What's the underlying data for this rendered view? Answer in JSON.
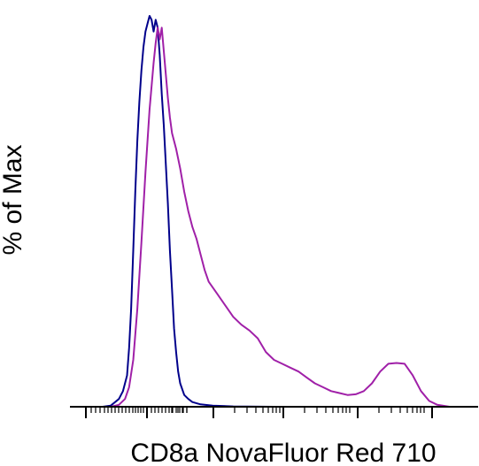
{
  "chart_data": {
    "type": "line",
    "title": "",
    "xlabel": "CD8a NovaFluor Red 710",
    "ylabel": "% of Max",
    "xscale": "biexponential",
    "xticks": "unlabeled",
    "ylim": [
      0,
      100
    ],
    "grid": false,
    "legend": "none",
    "series": [
      {
        "color": "#00008b",
        "points": [
          [
            0.0,
            0
          ],
          [
            0.08,
            0
          ],
          [
            0.1,
            0.3
          ],
          [
            0.12,
            2
          ],
          [
            0.13,
            4
          ],
          [
            0.14,
            8
          ],
          [
            0.145,
            15
          ],
          [
            0.15,
            25
          ],
          [
            0.155,
            40
          ],
          [
            0.16,
            55
          ],
          [
            0.165,
            68
          ],
          [
            0.17,
            78
          ],
          [
            0.175,
            86
          ],
          [
            0.18,
            92
          ],
          [
            0.185,
            96
          ],
          [
            0.19,
            98
          ],
          [
            0.195,
            100
          ],
          [
            0.2,
            99
          ],
          [
            0.205,
            96
          ],
          [
            0.21,
            99
          ],
          [
            0.215,
            97
          ],
          [
            0.22,
            90
          ],
          [
            0.225,
            80
          ],
          [
            0.23,
            72
          ],
          [
            0.235,
            62
          ],
          [
            0.24,
            52
          ],
          [
            0.245,
            40
          ],
          [
            0.25,
            30
          ],
          [
            0.255,
            20
          ],
          [
            0.26,
            14
          ],
          [
            0.265,
            9
          ],
          [
            0.27,
            6
          ],
          [
            0.28,
            3
          ],
          [
            0.29,
            2
          ],
          [
            0.3,
            1.2
          ],
          [
            0.32,
            0.6
          ],
          [
            0.35,
            0.3
          ],
          [
            0.4,
            0.1
          ],
          [
            0.5,
            0
          ],
          [
            1.0,
            0
          ]
        ]
      },
      {
        "color": "#a020a8",
        "points": [
          [
            0.0,
            0
          ],
          [
            0.1,
            0
          ],
          [
            0.12,
            0.5
          ],
          [
            0.135,
            2
          ],
          [
            0.145,
            5
          ],
          [
            0.155,
            12
          ],
          [
            0.165,
            25
          ],
          [
            0.175,
            42
          ],
          [
            0.185,
            60
          ],
          [
            0.195,
            76
          ],
          [
            0.205,
            88
          ],
          [
            0.21,
            93
          ],
          [
            0.215,
            97
          ],
          [
            0.22,
            94
          ],
          [
            0.225,
            97
          ],
          [
            0.23,
            91
          ],
          [
            0.235,
            85
          ],
          [
            0.24,
            79
          ],
          [
            0.245,
            74
          ],
          [
            0.25,
            70
          ],
          [
            0.26,
            66
          ],
          [
            0.27,
            61
          ],
          [
            0.28,
            55
          ],
          [
            0.29,
            50
          ],
          [
            0.3,
            46
          ],
          [
            0.31,
            43
          ],
          [
            0.32,
            39
          ],
          [
            0.33,
            35
          ],
          [
            0.34,
            32
          ],
          [
            0.36,
            29
          ],
          [
            0.38,
            26
          ],
          [
            0.4,
            23
          ],
          [
            0.42,
            21
          ],
          [
            0.44,
            19.5
          ],
          [
            0.46,
            17.5
          ],
          [
            0.48,
            14
          ],
          [
            0.5,
            12
          ],
          [
            0.52,
            11
          ],
          [
            0.54,
            10
          ],
          [
            0.56,
            9
          ],
          [
            0.58,
            7.5
          ],
          [
            0.6,
            6
          ],
          [
            0.62,
            5
          ],
          [
            0.64,
            4
          ],
          [
            0.66,
            3.5
          ],
          [
            0.68,
            3
          ],
          [
            0.7,
            3.2
          ],
          [
            0.72,
            4
          ],
          [
            0.74,
            6
          ],
          [
            0.76,
            9
          ],
          [
            0.78,
            11
          ],
          [
            0.8,
            11.2
          ],
          [
            0.82,
            11
          ],
          [
            0.84,
            8
          ],
          [
            0.86,
            4
          ],
          [
            0.88,
            1.5
          ],
          [
            0.9,
            0.5
          ],
          [
            0.93,
            0
          ],
          [
            1.0,
            0
          ]
        ]
      }
    ]
  }
}
